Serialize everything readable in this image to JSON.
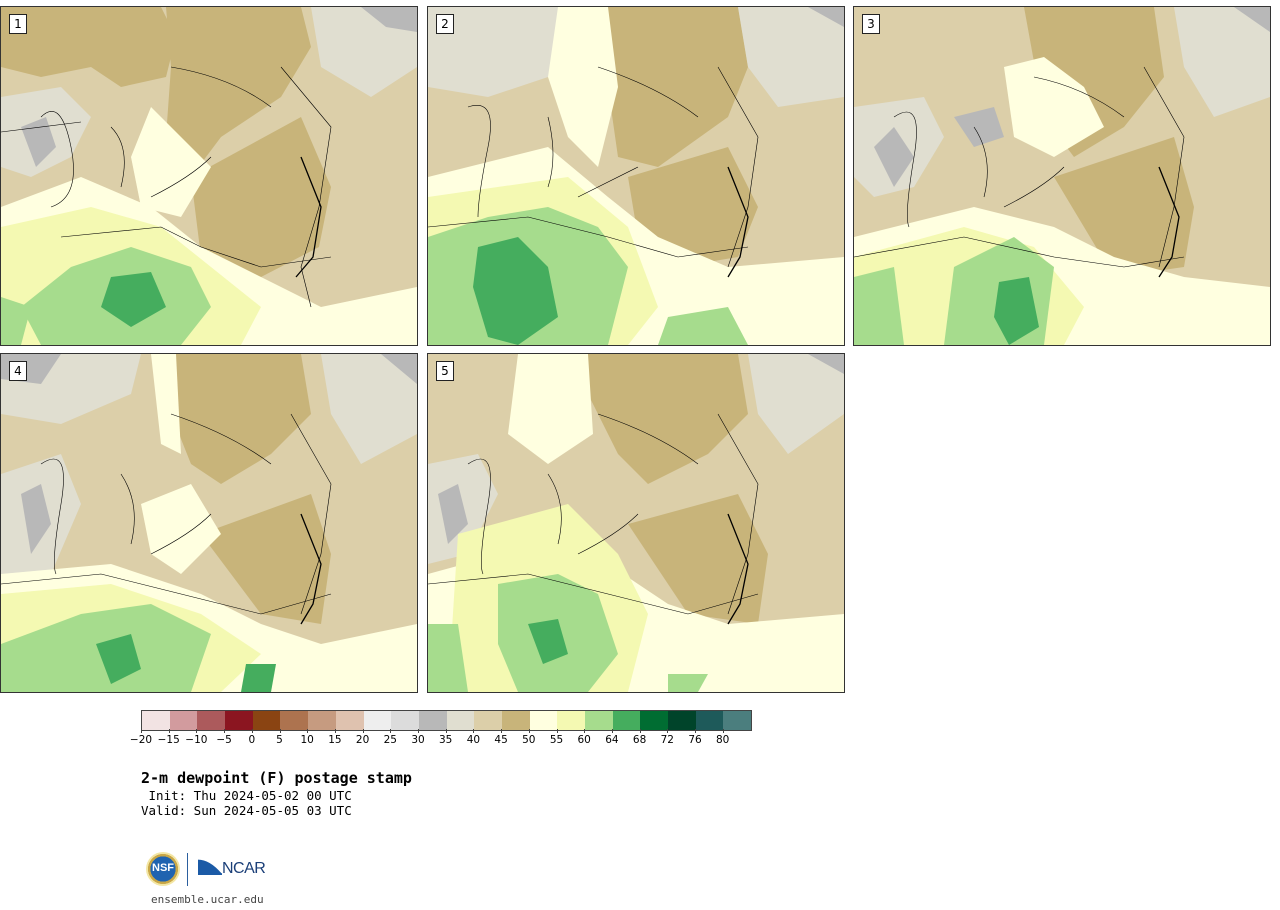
{
  "panels": [
    {
      "label": "1"
    },
    {
      "label": "2"
    },
    {
      "label": "3"
    },
    {
      "label": "4"
    },
    {
      "label": "5"
    }
  ],
  "colorbar": {
    "ticks": [
      "−20",
      "−15",
      "−10",
      "−5",
      "0",
      "5",
      "10",
      "15",
      "20",
      "25",
      "30",
      "35",
      "40",
      "45",
      "50",
      "55",
      "60",
      "64",
      "68",
      "72",
      "76",
      "80"
    ],
    "colors": [
      "#f2e3e3",
      "#d29b9e",
      "#ac5a5c",
      "#8b1520",
      "#8a4412",
      "#ad734f",
      "#c69b80",
      "#dfc2af",
      "#eeeeee",
      "#dcdcdc",
      "#b8b8b8",
      "#e0ded0",
      "#dccfa9",
      "#c8b47a",
      "#ffffe0",
      "#f4f9b2",
      "#a6dc8d",
      "#45ad5e",
      "#006d32",
      "#00442a",
      "#1e5a5a",
      "#4b7e7e"
    ]
  },
  "title": "2-m dewpoint (F) postage stamp",
  "init_line": " Init: Thu 2024-05-02 00 UTC",
  "valid_line": "Valid: Sun 2024-05-05 03 UTC",
  "logos": {
    "nsf": "NSF",
    "ncar": "NCAR"
  },
  "site": "ensemble.ucar.edu"
}
